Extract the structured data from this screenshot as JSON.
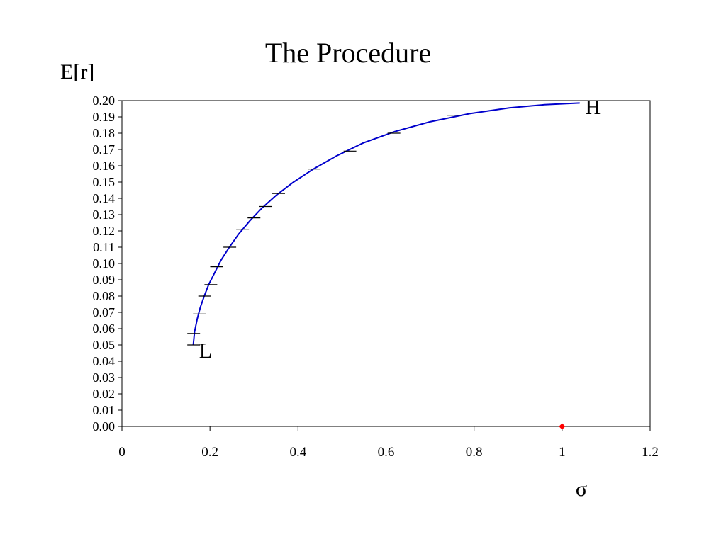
{
  "chart_data": {
    "type": "line",
    "title": "The Procedure",
    "ylabel": "E[r]",
    "xlabel": "σ",
    "xlim": [
      0,
      1.2
    ],
    "ylim": [
      0,
      0.2
    ],
    "x_ticks": [
      "0",
      "0.2",
      "0.4",
      "0.6",
      "0.8",
      "1",
      "1.2"
    ],
    "y_ticks": [
      "0.00",
      "0.01",
      "0.02",
      "0.03",
      "0.04",
      "0.05",
      "0.06",
      "0.07",
      "0.08",
      "0.09",
      "0.10",
      "0.11",
      "0.12",
      "0.13",
      "0.14",
      "0.15",
      "0.16",
      "0.17",
      "0.18",
      "0.19",
      "0.20"
    ],
    "grid": false,
    "series": [
      {
        "color": "#0000cc",
        "points": [
          [
            0.162,
            0.05
          ],
          [
            0.165,
            0.058
          ],
          [
            0.171,
            0.066
          ],
          [
            0.178,
            0.073
          ],
          [
            0.187,
            0.08
          ],
          [
            0.197,
            0.087
          ],
          [
            0.21,
            0.094
          ],
          [
            0.225,
            0.102
          ],
          [
            0.244,
            0.11
          ],
          [
            0.265,
            0.118
          ],
          [
            0.29,
            0.126
          ],
          [
            0.318,
            0.134
          ],
          [
            0.351,
            0.142
          ],
          [
            0.39,
            0.15
          ],
          [
            0.435,
            0.158
          ],
          [
            0.487,
            0.166
          ],
          [
            0.548,
            0.174
          ],
          [
            0.62,
            0.181
          ],
          [
            0.7,
            0.187
          ],
          [
            0.79,
            0.192
          ],
          [
            0.88,
            0.1955
          ],
          [
            0.96,
            0.1975
          ],
          [
            1.04,
            0.1985
          ]
        ]
      }
    ],
    "markers": [
      [
        0.163,
        0.05
      ],
      [
        0.163,
        0.057
      ],
      [
        0.176,
        0.069
      ],
      [
        0.188,
        0.08
      ],
      [
        0.202,
        0.087
      ],
      [
        0.215,
        0.098
      ],
      [
        0.245,
        0.11
      ],
      [
        0.274,
        0.121
      ],
      [
        0.3,
        0.128
      ],
      [
        0.327,
        0.135
      ],
      [
        0.356,
        0.143
      ],
      [
        0.437,
        0.158
      ],
      [
        0.518,
        0.169
      ],
      [
        0.618,
        0.18
      ],
      [
        0.753,
        0.191
      ]
    ],
    "marker_color": "#000000",
    "highlight_points": [
      {
        "x": 1.0,
        "y": 0.0,
        "color": "#ff0000"
      }
    ],
    "annotations": [
      {
        "text": "L",
        "x": 0.19,
        "y": 0.047
      },
      {
        "text": "H",
        "x": 1.07,
        "y": 0.1965
      }
    ]
  }
}
